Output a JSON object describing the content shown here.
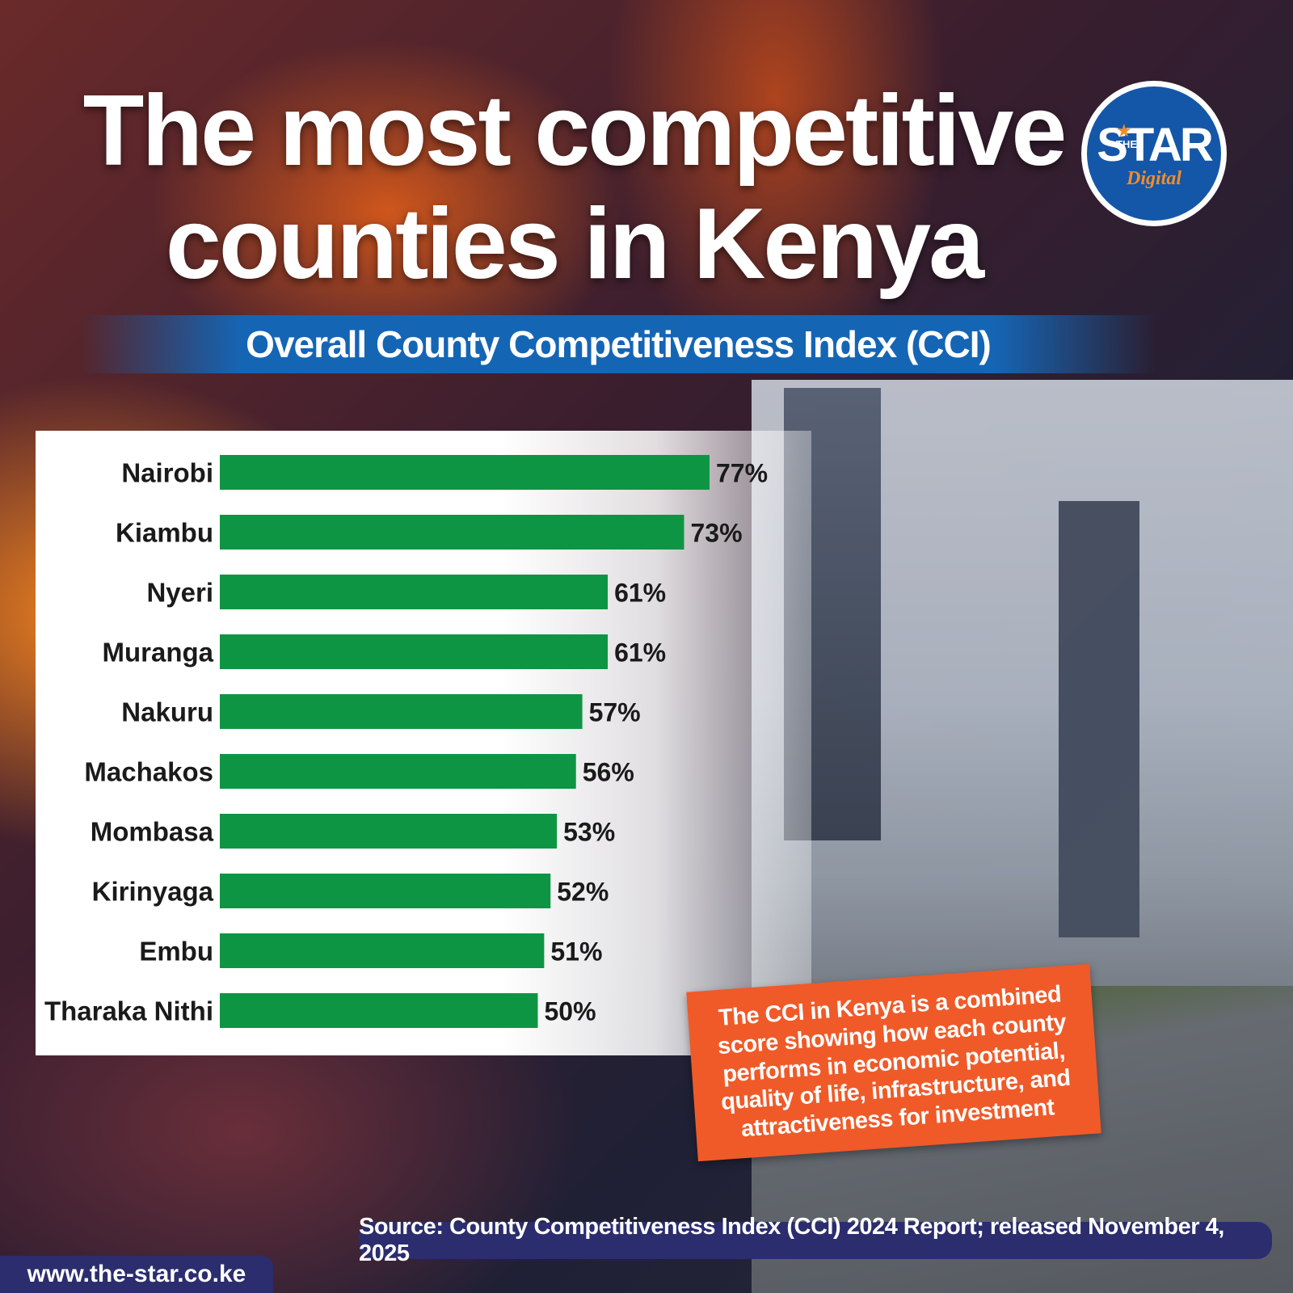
{
  "header": {
    "title_line1": "The most competitive",
    "title_line2": "counties in Kenya",
    "subtitle": "Overall County Competitiveness Index (CCI)"
  },
  "logo": {
    "the": "THE",
    "star": "STAR",
    "digital": "Digital"
  },
  "callout": "The CCI in Kenya is a combined score showing how each county performs in economic potential, quality of life, infrastructure, and attractiveness for investment",
  "footer": {
    "source": "Source: County Competitiveness Index (CCI) 2024 Report; released November 4, 2025",
    "url": "www.the-star.co.ke"
  },
  "colors": {
    "bar": "#0e9543",
    "label": "#1a1a1a",
    "accent_blue": "#1565b5",
    "accent_orange": "#f05a28",
    "navy": "#2b2d6e"
  },
  "chart_data": {
    "type": "bar",
    "orientation": "horizontal",
    "categories": [
      "Nairobi",
      "Kiambu",
      "Nyeri",
      "Muranga",
      "Nakuru",
      "Machakos",
      "Mombasa",
      "Kirinyaga",
      "Embu",
      "Tharaka Nithi"
    ],
    "values": [
      77,
      73,
      61,
      61,
      57,
      56,
      53,
      52,
      51,
      50
    ],
    "value_labels": [
      "77%",
      "73%",
      "61%",
      "61%",
      "57%",
      "56%",
      "53%",
      "52%",
      "51%",
      "50%"
    ],
    "title": "Overall County Competitiveness Index (CCI)",
    "xlabel": "",
    "ylabel": "",
    "xlim": [
      0,
      100
    ],
    "grid": false,
    "legend": "none"
  }
}
